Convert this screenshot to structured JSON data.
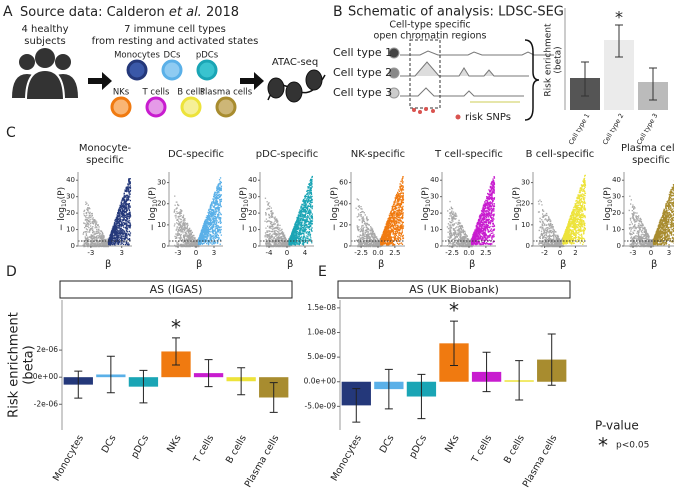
{
  "panel_a": {
    "label": "A",
    "title_parts": [
      "Source data: Calderon ",
      "et al.",
      " 2018"
    ],
    "subjects": [
      "4 healthy",
      "subjects"
    ],
    "cell_types": [
      "7 immune cell types",
      "from resting and activated states"
    ],
    "cells": [
      "Monocytes",
      "DCs",
      "pDCs",
      "NKs",
      "T cells",
      "B cells",
      "Plasma cells"
    ],
    "assay": "ATAC-seq"
  },
  "panel_b": {
    "label": "B",
    "title": "Schematic of analysis: LDSC-SEG",
    "regions": [
      "Cell-type specific",
      "open chromatin regions"
    ],
    "tracks": [
      "Cell type 1",
      "Cell type 2",
      "Cell type 3"
    ],
    "snps": "risk SNPs",
    "inset_ylabel": [
      "Risk enrichment",
      "(beta)"
    ],
    "inset_categories": [
      "Cell type 1",
      "Cell type 2",
      "Cell type 3"
    ],
    "inset_star": "*"
  },
  "panel_c": {
    "label": "C"
  },
  "panel_d": {
    "label": "D"
  },
  "panel_e": {
    "label": "E"
  },
  "legend": {
    "title": "P-value",
    "symbol": "*",
    "text": "p<0.05"
  },
  "chart_data": [
    {
      "type": "volcano",
      "title_lines": [
        "Monocyte-",
        "specific"
      ],
      "color": "#24387a",
      "xlabel": "β",
      "ylabel_parts": [
        "− log",
        "10",
        "(P)"
      ],
      "xlim": [
        -5.5,
        5
      ],
      "xticks": [
        -3,
        3
      ],
      "ylim": [
        0,
        45
      ],
      "yticks": [
        0,
        10,
        20,
        30,
        40
      ]
    },
    {
      "type": "volcano",
      "title_lines": [
        "DC-specific"
      ],
      "color": "#5ab0e8",
      "xlabel": "β",
      "ylabel_parts": [
        "− log",
        "10",
        "(P)"
      ],
      "xlim": [
        -4.5,
        4.5
      ],
      "xticks": [
        -3,
        0,
        3
      ],
      "ylim": [
        0,
        35
      ],
      "yticks": [
        0,
        10,
        20,
        30
      ]
    },
    {
      "type": "volcano",
      "title_lines": [
        "pDC-specific"
      ],
      "color": "#1aa5b5",
      "xlabel": "β",
      "ylabel_parts": [
        "− log",
        "10",
        "(P)"
      ],
      "xlim": [
        -6,
        6
      ],
      "xticks": [
        -4,
        0,
        4
      ],
      "ylim": [
        0,
        45
      ],
      "yticks": [
        0,
        10,
        20,
        30,
        40
      ]
    },
    {
      "type": "volcano",
      "title_lines": [
        "NK-specific"
      ],
      "color": "#f07a10",
      "xlabel": "β",
      "ylabel_parts": [
        "− log",
        "10",
        "(P)"
      ],
      "xlim": [
        -4,
        4
      ],
      "xticks": [
        -2.5,
        {
          "value": 0,
          "label": "0.0"
        },
        2.5
      ],
      "ylim": [
        0,
        70
      ],
      "yticks": [
        0,
        20,
        40,
        60
      ]
    },
    {
      "type": "volcano",
      "title_lines": [
        "T cell-specific"
      ],
      "color": "#c81ccf",
      "xlabel": "β",
      "ylabel_parts": [
        "− log",
        "10",
        "(P)"
      ],
      "xlim": [
        -4,
        4
      ],
      "xticks": [
        -2.5,
        {
          "value": 0,
          "label": "0.0"
        },
        2.5
      ],
      "ylim": [
        0,
        45
      ],
      "yticks": [
        0,
        10,
        20,
        30,
        40
      ]
    },
    {
      "type": "volcano",
      "title_lines": [
        "B cell-specific"
      ],
      "color": "#ede33a",
      "xlabel": "β",
      "ylabel_parts": [
        "− log",
        "10",
        "(P)"
      ],
      "xlim": [
        -3.5,
        3.5
      ],
      "xticks": [
        -2,
        0,
        2
      ],
      "ylim": [
        0,
        35
      ],
      "yticks": [
        0,
        10,
        20,
        30
      ]
    },
    {
      "type": "volcano",
      "title_lines": [
        "Plasma cell-",
        "specific"
      ],
      "color": "#a88c2f",
      "xlabel": "β",
      "ylabel_parts": [
        "− log",
        "10",
        "(P)"
      ],
      "xlim": [
        -4.5,
        4.5
      ],
      "xticks": [
        -3,
        0,
        3
      ],
      "ylim": [
        0,
        45
      ],
      "yticks": [
        0,
        10,
        20,
        30,
        40
      ]
    },
    {
      "type": "bar",
      "title": "AS (IGAS)",
      "ylabel_lines": [
        "Risk enrichment",
        "(beta)"
      ],
      "categories": [
        "Monocytes",
        "DCs",
        "pDCs",
        "NKs",
        "T cells",
        "B cells",
        "Plasma cells"
      ],
      "values": [
        -5.5e-07,
        2e-07,
        -7e-07,
        1.9e-06,
        3e-07,
        -3e-07,
        -1.5e-06
      ],
      "errors": [
        1e-06,
        1.35e-06,
        1.2e-06,
        1e-06,
        1e-06,
        1e-06,
        1.1e-06
      ],
      "colors": [
        "#24387a",
        "#5ab0e8",
        "#1aa5b5",
        "#f07a10",
        "#c81ccf",
        "#ede33a",
        "#a88c2f"
      ],
      "ylim": [
        -3.9e-06,
        5.7e-06
      ],
      "yticks": [
        {
          "value": -2e-06,
          "label": "-2e-06"
        },
        {
          "value": 0,
          "label": "0e+00"
        },
        {
          "value": 2e-06,
          "label": "2e-06"
        }
      ],
      "annotation": {
        "text": "*",
        "category": "NKs"
      }
    },
    {
      "type": "bar",
      "title": "AS (UK Biobank)",
      "categories": [
        "Monocytes",
        "DCs",
        "pDCs",
        "NKs",
        "T cells",
        "B cells",
        "Plasma cells"
      ],
      "values": [
        -4.8e-09,
        -1.5e-09,
        -3e-09,
        7.8e-09,
        2e-09,
        3e-10,
        4.5e-09
      ],
      "errors": [
        3.4e-09,
        4e-09,
        4.5e-09,
        4.5e-09,
        4e-09,
        4e-09,
        5.2e-09
      ],
      "colors": [
        "#24387a",
        "#5ab0e8",
        "#1aa5b5",
        "#f07a10",
        "#c81ccf",
        "#ede33a",
        "#a88c2f"
      ],
      "ylim": [
        -9.8e-09,
        1.66e-08
      ],
      "yticks": [
        {
          "value": -5e-09,
          "label": "-5.0e-09"
        },
        {
          "value": 0,
          "label": "0.0e+00"
        },
        {
          "value": 5e-09,
          "label": "5.0e-09"
        },
        {
          "value": 1e-08,
          "label": "1.0e-08"
        },
        {
          "value": 1.5e-08,
          "label": "1.5e-08"
        }
      ],
      "annotation": {
        "text": "*",
        "category": "NKs"
      }
    }
  ]
}
